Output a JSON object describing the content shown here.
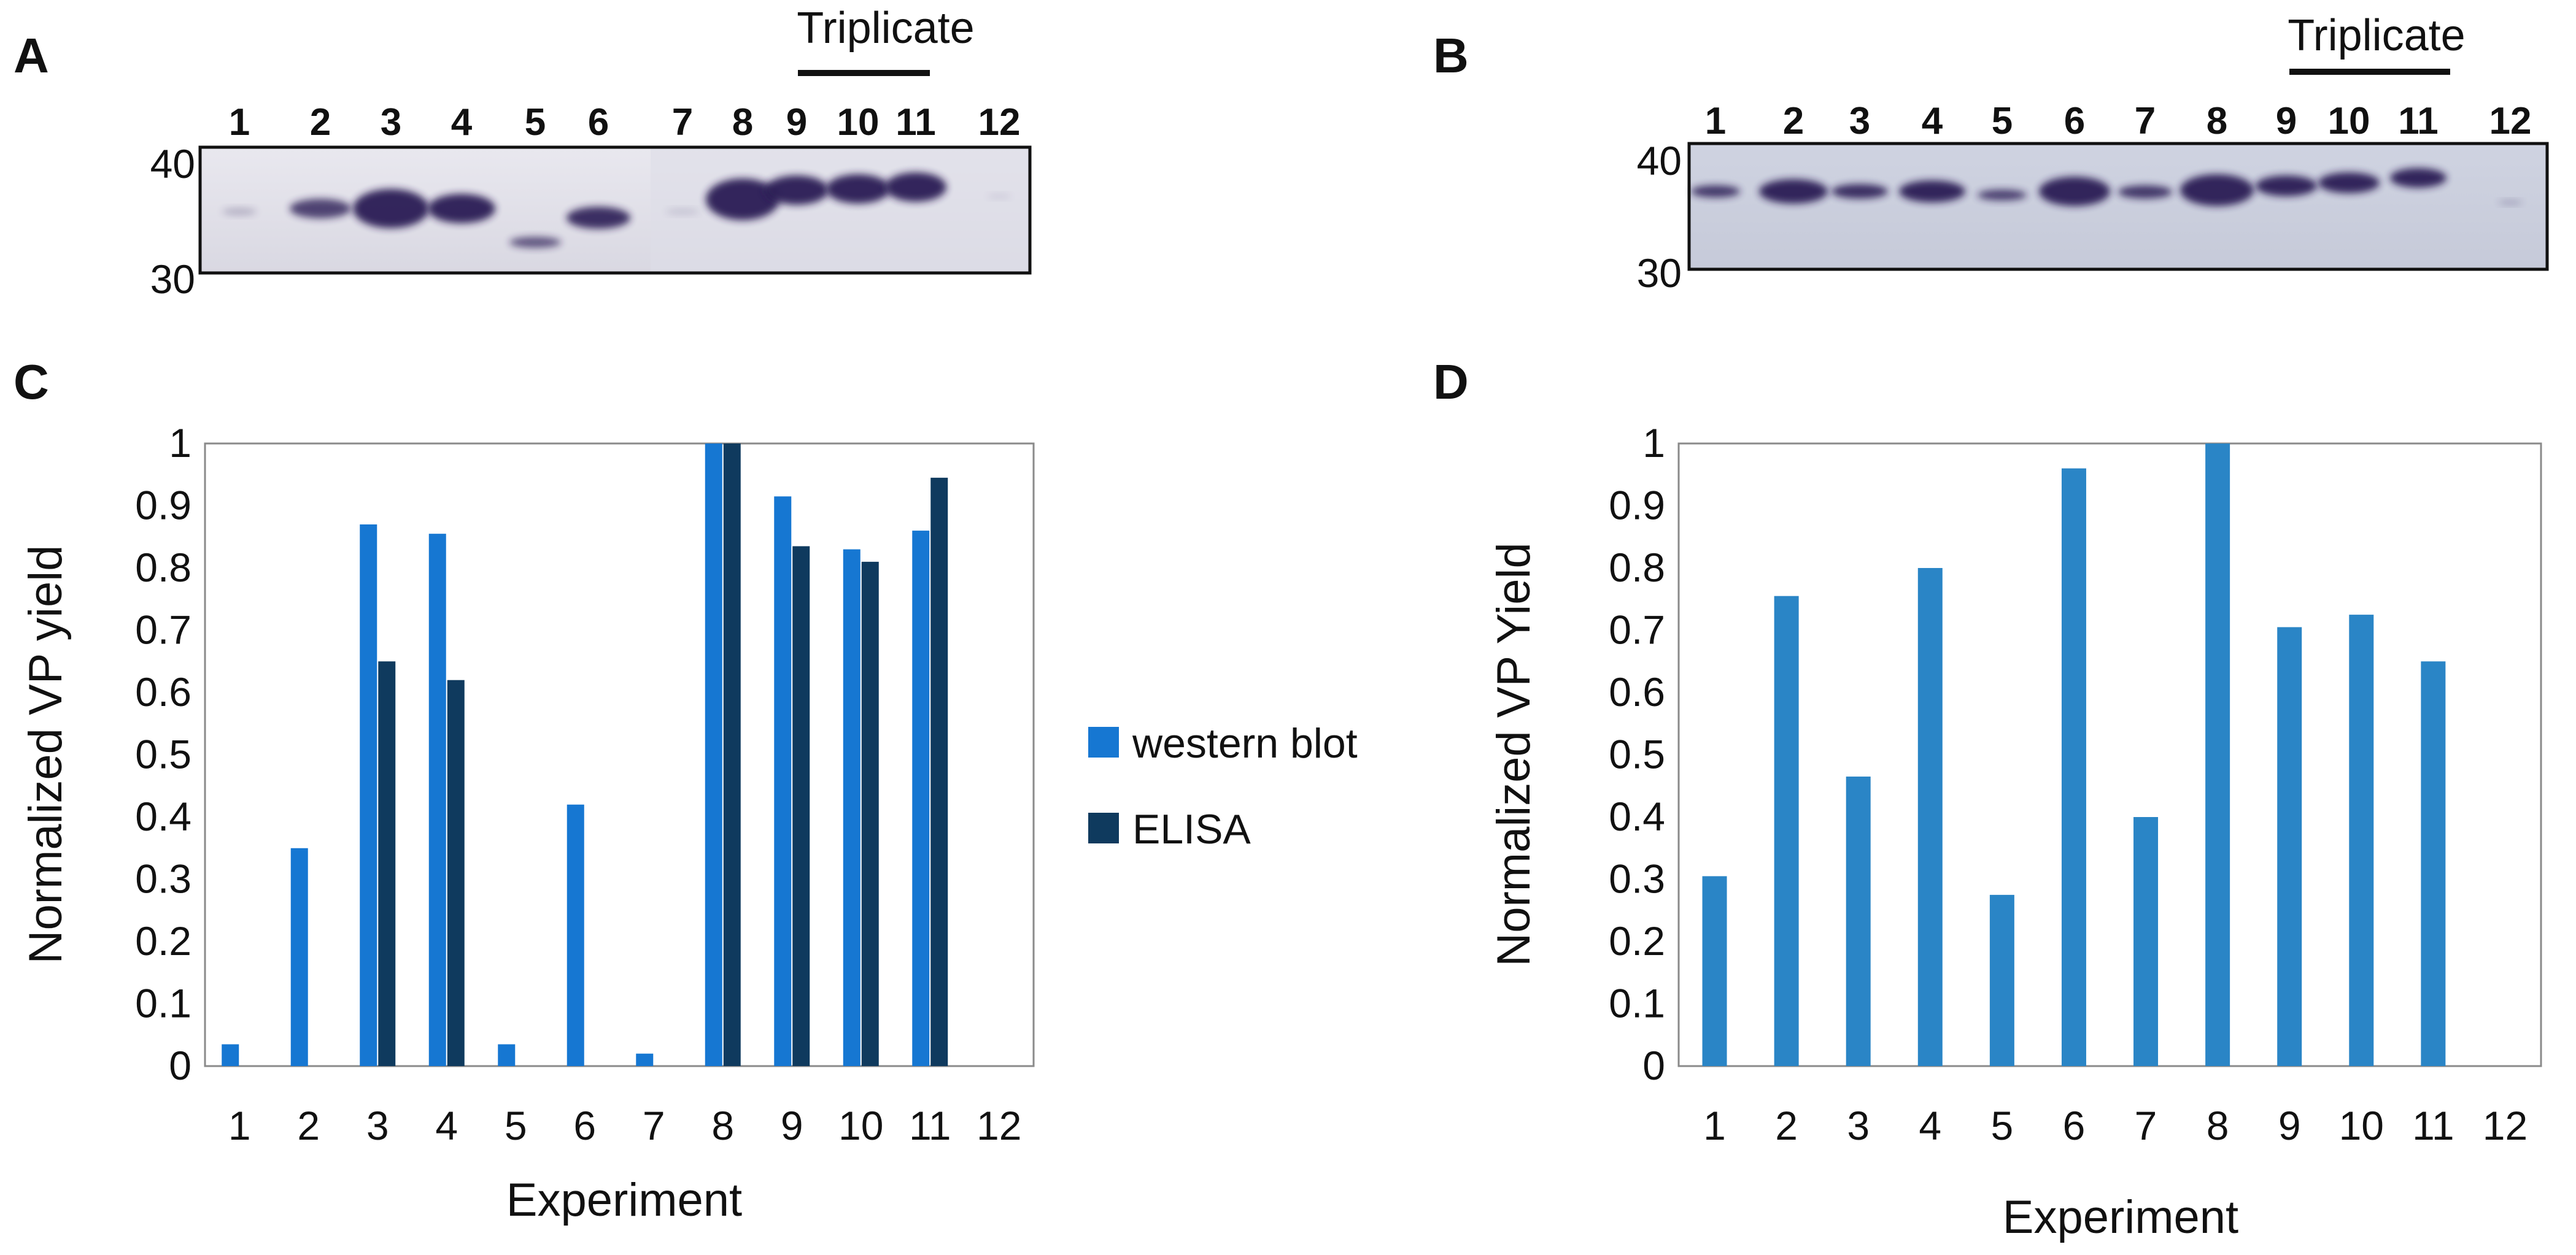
{
  "panels": {
    "a": "A",
    "b": "B",
    "c": "C",
    "d": "D"
  },
  "blot_a": {
    "lanes": [
      "1",
      "2",
      "3",
      "4",
      "5",
      "6",
      "7",
      "8",
      "9",
      "10",
      "11",
      "12"
    ],
    "mw_top": "40",
    "mw_bottom": "30",
    "triplicate_label": "Triplicate"
  },
  "blot_b": {
    "lanes": [
      "1",
      "2",
      "3",
      "4",
      "5",
      "6",
      "7",
      "8",
      "9",
      "10",
      "11",
      "12"
    ],
    "mw_top": "40",
    "mw_bottom": "30",
    "triplicate_label": "Triplicate"
  },
  "colors": {
    "western": "#1677d2",
    "elisa": "#0f3a5e",
    "single": "#2a85c6",
    "band_dark": "#2a1f55",
    "blot_bg": "#d6d8e2"
  },
  "chart_data": [
    {
      "panel": "C",
      "type": "bar",
      "categories": [
        "1",
        "2",
        "3",
        "4",
        "5",
        "6",
        "7",
        "8",
        "9",
        "10",
        "11",
        "12"
      ],
      "series": [
        {
          "name": "western blot",
          "values": [
            0.035,
            0.35,
            0.87,
            0.855,
            0.035,
            0.42,
            0.02,
            1.0,
            0.915,
            0.83,
            0.86,
            0
          ]
        },
        {
          "name": "ELISA",
          "values": [
            0,
            0,
            0.65,
            0.62,
            0,
            0,
            0,
            1.0,
            0.835,
            0.81,
            0.945,
            0
          ]
        }
      ],
      "xlabel": "Experiment",
      "ylabel": "Normalized VP yield",
      "ylim": [
        0,
        1
      ],
      "yticks": [
        "0",
        "0.1",
        "0.2",
        "0.3",
        "0.4",
        "0.5",
        "0.6",
        "0.7",
        "0.8",
        "0.9",
        "1"
      ],
      "legend": "right"
    },
    {
      "panel": "D",
      "type": "bar",
      "categories": [
        "1",
        "2",
        "3",
        "4",
        "5",
        "6",
        "7",
        "8",
        "9",
        "10",
        "11",
        "12"
      ],
      "series": [
        {
          "name": "VP yield",
          "values": [
            0.305,
            0.755,
            0.465,
            0.8,
            0.275,
            0.96,
            0.4,
            1.0,
            0.705,
            0.725,
            0.65,
            0
          ]
        }
      ],
      "xlabel": "Experiment",
      "ylabel": "Normalized VP Yield",
      "ylim": [
        0,
        1
      ],
      "yticks": [
        "0",
        "0.1",
        "0.2",
        "0.3",
        "0.4",
        "0.5",
        "0.6",
        "0.7",
        "0.8",
        "0.9",
        "1"
      ]
    }
  ]
}
